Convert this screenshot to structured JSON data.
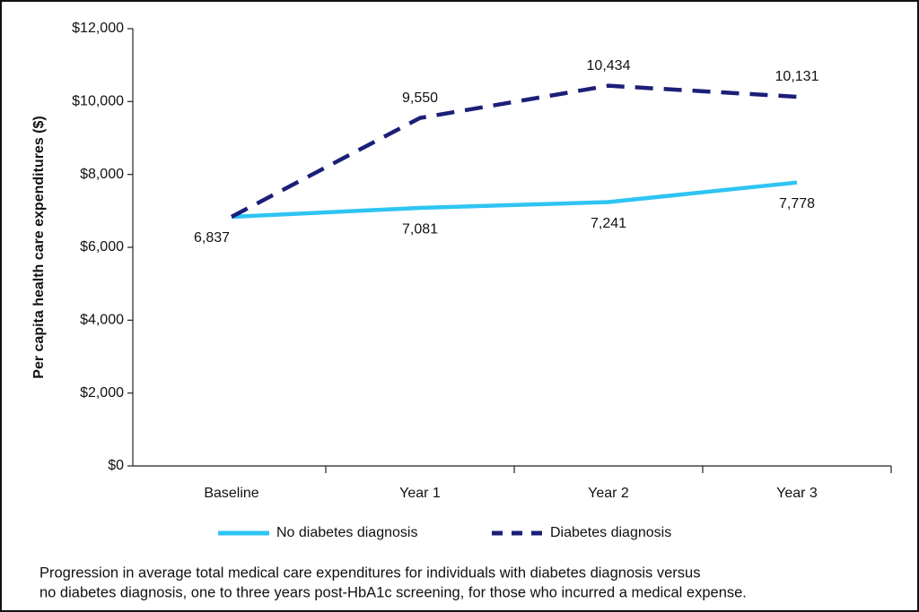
{
  "chart_data": {
    "type": "line",
    "y_label": "Per capita health care expenditures ($)",
    "categories": [
      "Baseline",
      "Year 1",
      "Year 2",
      "Year 3"
    ],
    "series": [
      {
        "name": "No diabetes diagnosis",
        "color": "#2ec4f3",
        "dash": false,
        "label_side": "below",
        "values": [
          6837,
          7081,
          7241,
          7778
        ],
        "value_labels": [
          "6,837",
          "7,081",
          "7,241",
          "7,778"
        ]
      },
      {
        "name": "Diabetes diagnosis",
        "color": "#1c1f78",
        "dash": true,
        "label_side": "above",
        "values": [
          6837,
          9550,
          10434,
          10131
        ],
        "value_labels": [
          null,
          "9,550",
          "10,434",
          "10,131"
        ]
      }
    ],
    "ylim": [
      0,
      12000
    ],
    "yticks": [
      {
        "value": 0,
        "label": "$0"
      },
      {
        "value": 2000,
        "label": "$2,000"
      },
      {
        "value": 4000,
        "label": "$4,000"
      },
      {
        "value": 6000,
        "label": "$6,000"
      },
      {
        "value": 8000,
        "label": "$8,000"
      },
      {
        "value": 10000,
        "label": "$10,000"
      },
      {
        "value": 12000,
        "label": "$12,000"
      }
    ],
    "grid": false,
    "caption": [
      "Progression in average total medical care expenditures for individuals with diabetes diagnosis versus",
      "no diabetes diagnosis, one to three years post-HbA1c screening, for those who incurred a medical expense."
    ]
  }
}
